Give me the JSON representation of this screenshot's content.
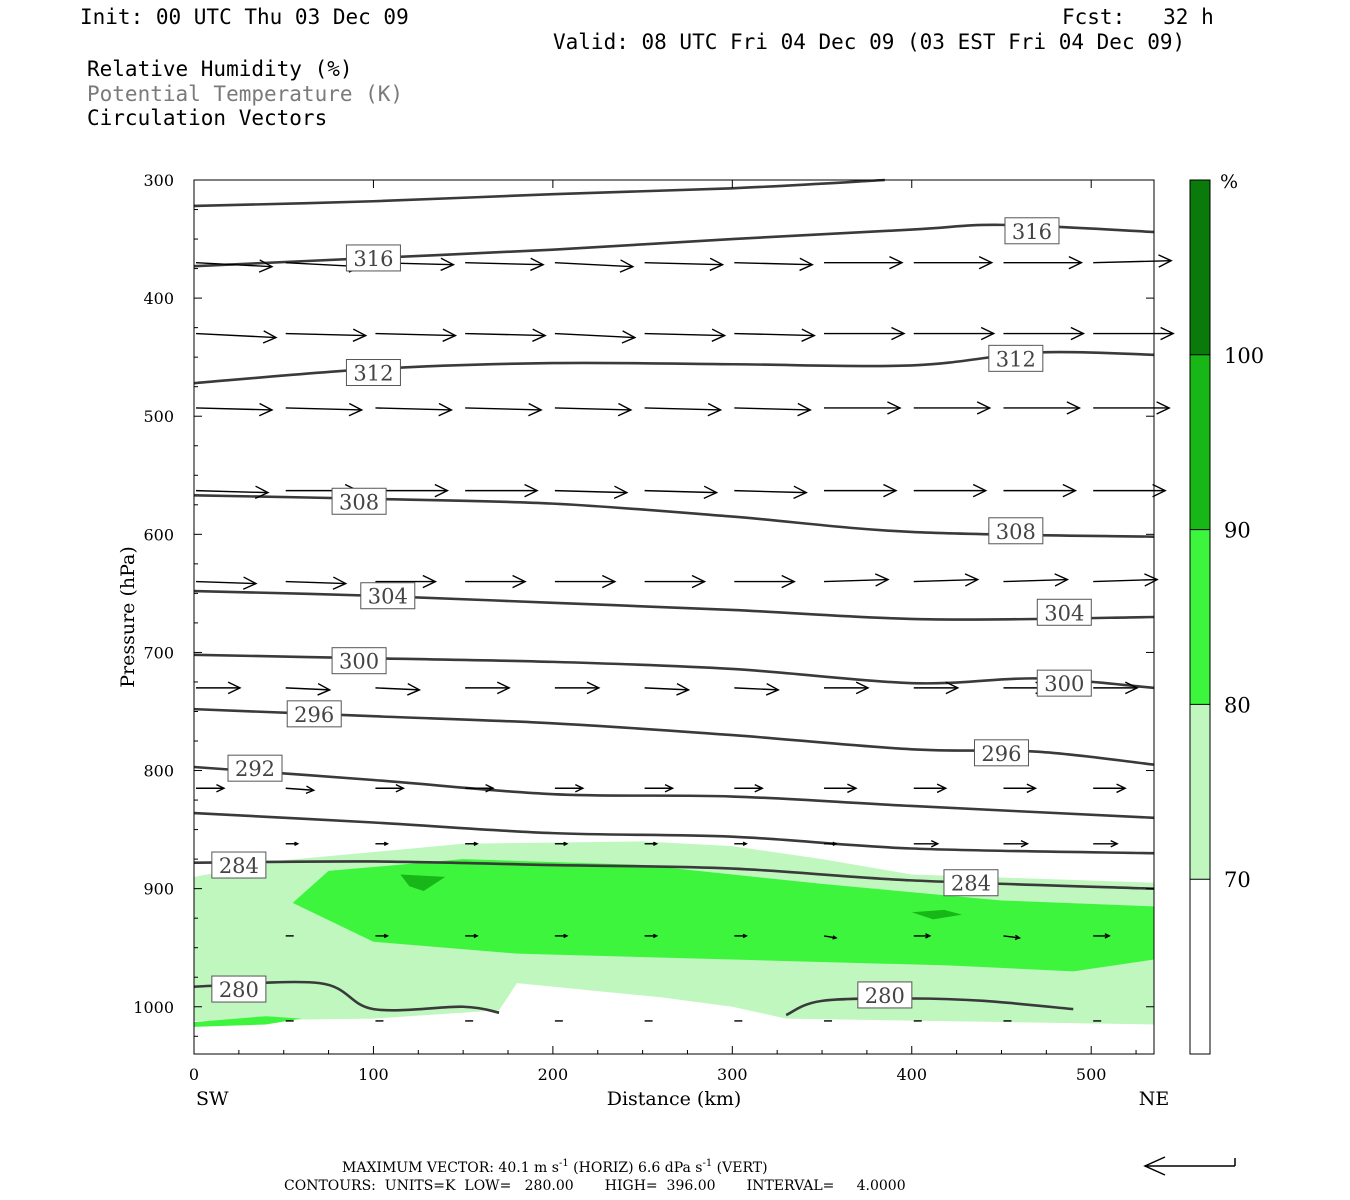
{
  "header": {
    "init": "Init: 00 UTC Thu 03 Dec 09",
    "fcst": "Fcst:   32 h",
    "valid": "Valid: 08 UTC Fri 04 Dec 09 (03 EST Fri 04 Dec 09)",
    "legend_rh": "Relative Humidity (%)",
    "legend_theta": "Potential Temperature (K)",
    "legend_vec": "Circulation Vectors"
  },
  "footer": {
    "max_vector_prefix": "MAXIMUM VECTOR:  40.1 m s",
    "max_vector_mid": " (HORIZ)        6.6 dPa s",
    "max_vector_suffix": " (VERT)",
    "superscript": "-1",
    "contours": "CONTOURS:  UNITS=K  LOW=   280.00       HIGH=  396.00       INTERVAL=     4.0000"
  },
  "colors": {
    "rh_70_80": "#bff7bf",
    "rh_80_90": "#3df53d",
    "rh_90_100": "#17b717",
    "rh_100_plus": "#0a7a0a",
    "contour": "#3a3a3a",
    "arrow": "#000000"
  },
  "chart_data": {
    "type": "cross-section",
    "xlabel": "Distance (km)",
    "ylabel": "Pressure (hPa)",
    "x_left_label": "SW",
    "x_right_label": "NE",
    "xlim": [
      0,
      535
    ],
    "ylim": [
      1040,
      300
    ],
    "xticks": [
      0,
      100,
      200,
      300,
      400,
      500
    ],
    "yticks": [
      300,
      400,
      500,
      600,
      700,
      800,
      900,
      1000
    ],
    "colorbar": {
      "unit": "%",
      "levels": [
        70,
        80,
        90,
        100
      ],
      "labels": [
        "70",
        "80",
        "90",
        "100"
      ]
    },
    "theta_contours": [
      {
        "value": 320,
        "points": [
          [
            0,
            322
          ],
          [
            100,
            318
          ],
          [
            200,
            312
          ],
          [
            300,
            307
          ],
          [
            385,
            300
          ]
        ]
      },
      {
        "value": 316,
        "points": [
          [
            0,
            373
          ],
          [
            100,
            366
          ],
          [
            200,
            359
          ],
          [
            300,
            350
          ],
          [
            400,
            342
          ],
          [
            450,
            338
          ],
          [
            535,
            344
          ]
        ],
        "labels": [
          [
            100,
            366
          ],
          [
            467,
            343
          ]
        ]
      },
      {
        "value": 312,
        "points": [
          [
            0,
            472
          ],
          [
            100,
            460
          ],
          [
            200,
            455
          ],
          [
            300,
            456
          ],
          [
            400,
            457
          ],
          [
            470,
            446
          ],
          [
            535,
            448
          ]
        ],
        "labels": [
          [
            100,
            463
          ],
          [
            458,
            451
          ]
        ]
      },
      {
        "value": 308,
        "points": [
          [
            0,
            567
          ],
          [
            100,
            570
          ],
          [
            200,
            574
          ],
          [
            300,
            585
          ],
          [
            400,
            598
          ],
          [
            535,
            602
          ]
        ],
        "labels": [
          [
            92,
            572
          ],
          [
            458,
            597
          ]
        ]
      },
      {
        "value": 304,
        "points": [
          [
            0,
            648
          ],
          [
            100,
            652
          ],
          [
            200,
            658
          ],
          [
            300,
            664
          ],
          [
            410,
            672
          ],
          [
            535,
            670
          ]
        ],
        "labels": [
          [
            108,
            652
          ],
          [
            485,
            666
          ]
        ]
      },
      {
        "value": 300,
        "points": [
          [
            0,
            702
          ],
          [
            100,
            705
          ],
          [
            200,
            708
          ],
          [
            300,
            714
          ],
          [
            400,
            726
          ],
          [
            470,
            722
          ],
          [
            535,
            730
          ]
        ],
        "labels": [
          [
            92,
            707
          ],
          [
            485,
            726
          ]
        ]
      },
      {
        "value": 296,
        "points": [
          [
            0,
            748
          ],
          [
            100,
            754
          ],
          [
            200,
            760
          ],
          [
            300,
            770
          ],
          [
            400,
            782
          ],
          [
            470,
            784
          ],
          [
            535,
            795
          ]
        ],
        "labels": [
          [
            67,
            752
          ],
          [
            450,
            785
          ]
        ]
      },
      {
        "value": 292,
        "points": [
          [
            0,
            797
          ],
          [
            100,
            808
          ],
          [
            200,
            820
          ],
          [
            300,
            822
          ],
          [
            400,
            830
          ],
          [
            535,
            840
          ]
        ],
        "labels": [
          [
            34,
            798
          ]
        ]
      },
      {
        "value": 288,
        "points": [
          [
            0,
            836
          ],
          [
            100,
            844
          ],
          [
            200,
            853
          ],
          [
            300,
            856
          ],
          [
            400,
            866
          ],
          [
            535,
            870
          ]
        ]
      },
      {
        "value": 284,
        "points": [
          [
            0,
            878
          ],
          [
            100,
            877
          ],
          [
            200,
            880
          ],
          [
            300,
            883
          ],
          [
            400,
            893
          ],
          [
            535,
            900
          ]
        ],
        "labels": [
          [
            25,
            880
          ],
          [
            433,
            895
          ]
        ]
      },
      {
        "value": 280,
        "points": [
          [
            0,
            983
          ],
          [
            70,
            980
          ],
          [
            100,
            1002
          ],
          [
            150,
            1000
          ],
          [
            170,
            1005
          ]
        ],
        "labels": [
          [
            25,
            985
          ]
        ]
      },
      {
        "value": 280,
        "points": [
          [
            330,
            1007
          ],
          [
            350,
            995
          ],
          [
            400,
            993
          ],
          [
            440,
            995
          ],
          [
            490,
            1002
          ]
        ],
        "labels": [
          [
            385,
            990
          ]
        ]
      }
    ],
    "rh_regions": [
      {
        "level": "70-80",
        "points": [
          [
            0,
            890
          ],
          [
            50,
            876
          ],
          [
            150,
            862
          ],
          [
            250,
            860
          ],
          [
            300,
            864
          ],
          [
            350,
            875
          ],
          [
            400,
            888
          ],
          [
            535,
            895
          ],
          [
            535,
            1015
          ],
          [
            330,
            1010
          ],
          [
            300,
            1000
          ],
          [
            260,
            992
          ],
          [
            180,
            980
          ],
          [
            170,
            1003
          ],
          [
            100,
            1010
          ],
          [
            0,
            1012
          ],
          [
            0,
            950
          ]
        ]
      },
      {
        "level": "80-90",
        "points": [
          [
            55,
            912
          ],
          [
            75,
            885
          ],
          [
            150,
            875
          ],
          [
            250,
            880
          ],
          [
            350,
            896
          ],
          [
            450,
            910
          ],
          [
            535,
            915
          ],
          [
            535,
            960
          ],
          [
            490,
            970
          ],
          [
            420,
            965
          ],
          [
            300,
            960
          ],
          [
            180,
            955
          ],
          [
            100,
            945
          ]
        ]
      },
      {
        "level": "80-90",
        "points": [
          [
            0,
            1013
          ],
          [
            40,
            1008
          ],
          [
            60,
            1010
          ],
          [
            40,
            1015
          ],
          [
            0,
            1017
          ]
        ]
      },
      {
        "level": "90-100",
        "points": [
          [
            115,
            888
          ],
          [
            140,
            890
          ],
          [
            128,
            902
          ],
          [
            120,
            898
          ]
        ]
      },
      {
        "level": "90-100",
        "points": [
          [
            400,
            920
          ],
          [
            418,
            918
          ],
          [
            428,
            922
          ],
          [
            412,
            926
          ]
        ]
      }
    ],
    "vector_rows": [
      {
        "p": 370,
        "xs": [
          0,
          50,
          100,
          150,
          200,
          250,
          300,
          350,
          400,
          450,
          500
        ],
        "u": [
          38,
          38,
          39,
          39,
          39,
          39,
          39,
          39,
          39,
          39,
          39
        ],
        "w": [
          -2,
          -2,
          -1,
          -1,
          -2,
          -1,
          -1,
          0,
          0,
          0,
          1
        ]
      },
      {
        "p": 430,
        "xs": [
          0,
          50,
          100,
          150,
          200,
          250,
          300,
          350,
          400,
          450,
          500
        ],
        "u": [
          40,
          40,
          40,
          40,
          40,
          40,
          40,
          40,
          40,
          40,
          40
        ],
        "w": [
          -2,
          -1,
          -1,
          -1,
          -2,
          -1,
          -1,
          0,
          0,
          0,
          0
        ]
      },
      {
        "p": 493,
        "xs": [
          0,
          50,
          100,
          150,
          200,
          250,
          300,
          350,
          400,
          450,
          500
        ],
        "u": [
          38,
          38,
          38,
          38,
          38,
          38,
          38,
          38,
          38,
          38,
          38
        ],
        "w": [
          -1,
          -1,
          -1,
          -1,
          -1,
          -1,
          -1,
          0,
          0,
          0,
          0
        ]
      },
      {
        "p": 563,
        "xs": [
          0,
          50,
          100,
          150,
          200,
          250,
          300,
          350,
          400,
          450,
          500
        ],
        "u": [
          36,
          36,
          36,
          36,
          36,
          36,
          36,
          36,
          36,
          36,
          36
        ],
        "w": [
          -1,
          0,
          0,
          0,
          -1,
          -1,
          -1,
          0,
          0,
          0,
          0
        ]
      },
      {
        "p": 640,
        "xs": [
          0,
          50,
          100,
          150,
          200,
          250,
          300,
          350,
          400,
          450,
          500
        ],
        "u": [
          30,
          30,
          30,
          30,
          30,
          30,
          30,
          32,
          32,
          32,
          32
        ],
        "w": [
          -1,
          -1,
          0,
          0,
          0,
          0,
          0,
          1,
          1,
          1,
          1
        ]
      },
      {
        "p": 730,
        "xs": [
          0,
          50,
          100,
          150,
          200,
          250,
          300,
          350,
          400,
          450,
          500
        ],
        "u": [
          22,
          22,
          22,
          22,
          22,
          22,
          22,
          22,
          22,
          22,
          22
        ],
        "w": [
          0,
          -1,
          -1,
          0,
          0,
          -1,
          -1,
          0,
          0,
          0,
          0
        ]
      },
      {
        "p": 815,
        "xs": [
          0,
          50,
          100,
          150,
          200,
          250,
          300,
          350,
          400,
          450,
          500
        ],
        "u": [
          14,
          14,
          14,
          14,
          14,
          14,
          14,
          16,
          16,
          16,
          16
        ],
        "w": [
          0,
          -1,
          0,
          0,
          0,
          0,
          0,
          0,
          0,
          0,
          0
        ]
      },
      {
        "p": 862,
        "xs": [
          50,
          100,
          150,
          200,
          250,
          300,
          350,
          400,
          450,
          500
        ],
        "u": [
          6,
          6,
          6,
          6,
          6,
          6,
          6,
          12,
          12,
          12
        ],
        "w": [
          0,
          0,
          0,
          0,
          0,
          0,
          0,
          0,
          0,
          0
        ]
      },
      {
        "p": 940,
        "xs": [
          50,
          100,
          150,
          200,
          250,
          300,
          350,
          400,
          450,
          500
        ],
        "u": [
          4,
          6,
          6,
          6,
          6,
          6,
          6,
          8,
          8,
          8
        ],
        "w": [
          0,
          0,
          0,
          0,
          0,
          0,
          -1,
          0,
          -1,
          0
        ]
      },
      {
        "p": 1012,
        "xs": [
          50,
          100,
          150,
          200,
          250,
          300,
          350,
          400,
          450,
          500
        ],
        "u": [
          4,
          4,
          4,
          4,
          4,
          4,
          4,
          4,
          4,
          4
        ],
        "w": [
          0,
          0,
          0,
          0,
          0,
          0,
          0,
          0,
          0,
          0
        ]
      }
    ]
  }
}
